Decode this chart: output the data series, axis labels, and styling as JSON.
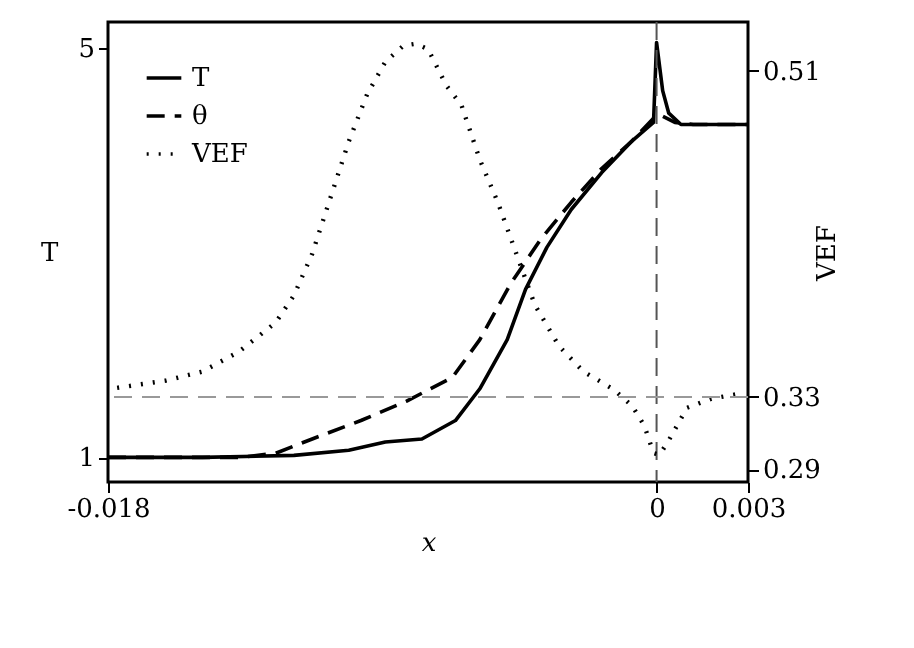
{
  "chart_data": {
    "type": "line",
    "xlabel": "x",
    "ylabel": "T",
    "y2label": "VEF",
    "xlim": [
      -0.018,
      0.003
    ],
    "xticks": [
      -0.018,
      0,
      0.003
    ],
    "ylim": [
      0.76,
      5.25
    ],
    "yticks": [
      1,
      5
    ],
    "y2lim": [
      0.283,
      0.537
    ],
    "y2ticks": [
      0.29,
      0.33,
      0.51
    ],
    "grid": false,
    "legend": "top left",
    "marker": "none",
    "series": [
      {
        "name": "T",
        "color": "#000000",
        "line_style": "solid",
        "x": [
          -0.018,
          -0.0149,
          -0.0119,
          -0.0101,
          -0.0089,
          -0.0077,
          -0.0066,
          -0.0058,
          -0.0049,
          -0.0043,
          -0.0036,
          -0.0028,
          -0.0018,
          -0.0008,
          -0.0001,
          0,
          0.0002,
          0.0004,
          0.0008,
          0.003
        ],
        "values": [
          1,
          1,
          1.02,
          1.07,
          1.15,
          1.18,
          1.36,
          1.67,
          2.15,
          2.64,
          3.05,
          3.42,
          3.78,
          4.09,
          4.27,
          5.05,
          4.58,
          4.36,
          4.25,
          4.25
        ]
      },
      {
        "name": "θ",
        "color": "#000000",
        "line_style": "dashed",
        "x": [
          -0.018,
          -0.0137,
          -0.0125,
          -0.0113,
          -0.0097,
          -0.0082,
          -0.0067,
          -0.0058,
          -0.0048,
          -0.0038,
          -0.0028,
          -0.0018,
          -0.0008,
          -0.0001,
          0.0002,
          0.0006,
          0.0012,
          0.003
        ],
        "values": [
          1,
          1,
          1.04,
          1.18,
          1.36,
          1.55,
          1.78,
          2.15,
          2.69,
          3.13,
          3.49,
          3.82,
          4.09,
          4.31,
          4.33,
          4.27,
          4.25,
          4.25
        ]
      },
      {
        "name": "VEF",
        "color": "#000000",
        "line_style": "dotted",
        "axis": "y2",
        "x": [
          -0.0177,
          -0.0161,
          -0.0149,
          -0.0137,
          -0.0125,
          -0.0119,
          -0.0113,
          -0.0107,
          -0.0101,
          -0.0095,
          -0.0089,
          -0.0083,
          -0.0079,
          -0.0075,
          -0.0069,
          -0.0064,
          -0.0058,
          -0.0052,
          -0.0046,
          -0.004,
          -0.0032,
          -0.0024,
          -0.0014,
          -0.0008,
          -0.0004,
          -0.0001,
          0.0001,
          0.0004,
          0.001,
          0.0018,
          0.0028
        ],
        "values": [
          0.335,
          0.339,
          0.344,
          0.355,
          0.371,
          0.386,
          0.409,
          0.44,
          0.471,
          0.497,
          0.515,
          0.524,
          0.525,
          0.522,
          0.502,
          0.491,
          0.461,
          0.437,
          0.409,
          0.381,
          0.358,
          0.344,
          0.334,
          0.325,
          0.314,
          0.299,
          0.298,
          0.306,
          0.324,
          0.329,
          0.332
        ]
      }
    ],
    "ref_lines": [
      {
        "axis": "x",
        "value": 0,
        "color": "#555555",
        "line_style": "dashed"
      },
      {
        "axis": "y2",
        "value": 0.33,
        "color": "#999999",
        "line_style": "dashed"
      }
    ]
  }
}
